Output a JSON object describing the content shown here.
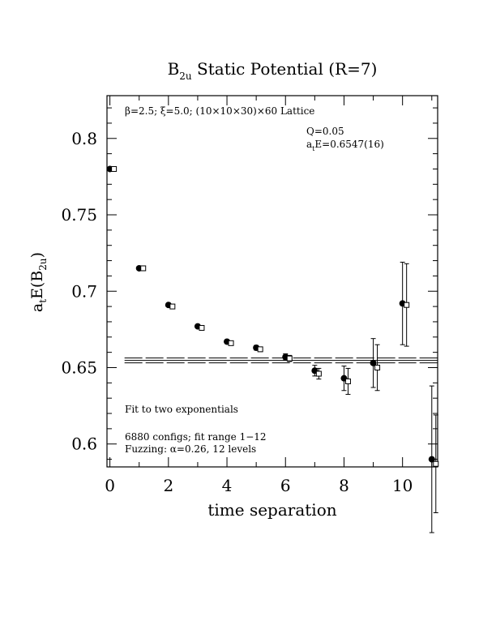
{
  "chart_data": {
    "type": "scatter",
    "title": "B2u Static Potential (R=7)",
    "title_parts": {
      "main": "B",
      "sub": "2u",
      "rest": " Static Potential (R=7)"
    },
    "xlabel": "time separation",
    "ylabel": "a_tE(B_2u)",
    "ylabel_parts": {
      "a": "a",
      "t": "t",
      "e": "E(B",
      "sub": "2u",
      "close": ")"
    },
    "xlim": [
      -0.1,
      11.2
    ],
    "ylim": [
      0.585,
      0.828
    ],
    "x_ticks": [
      0,
      2,
      4,
      6,
      8,
      10
    ],
    "x_tick_labels": [
      "0",
      "2",
      "4",
      "6",
      "8",
      "10"
    ],
    "y_ticks": [
      0.6,
      0.65,
      0.7,
      0.75,
      0.8
    ],
    "y_tick_labels": [
      "0.6",
      "0.65",
      "0.7",
      "0.75",
      "0.8"
    ],
    "annotations": {
      "lattice": "β=2.5; ξ=5.0; (10×10×30)×60 Lattice",
      "q": "Q=0.05",
      "energy_prefix": "a",
      "energy_sub": "t",
      "energy_rest": "E=0.6547(16)",
      "fit_desc": "Fit to two exponentials",
      "configs": "6880 configs; fit range 1−12",
      "fuzzing": "Fuzzing: α=0.26, 12 levels"
    },
    "fit": {
      "value": 0.6547,
      "error": 0.0016,
      "x_start": 0.5,
      "x_end": 11.2
    },
    "series": [
      {
        "marker": "filled-circle",
        "points": [
          {
            "x": 0,
            "y": 0.78,
            "err": 0.0007
          },
          {
            "x": 1,
            "y": 0.715,
            "err": 0.0008
          },
          {
            "x": 2,
            "y": 0.691,
            "err": 0.0009
          },
          {
            "x": 3,
            "y": 0.677,
            "err": 0.001
          },
          {
            "x": 4,
            "y": 0.667,
            "err": 0.0012
          },
          {
            "x": 5,
            "y": 0.663,
            "err": 0.0015
          },
          {
            "x": 6,
            "y": 0.657,
            "err": 0.002
          },
          {
            "x": 7,
            "y": 0.648,
            "err": 0.0035
          },
          {
            "x": 8,
            "y": 0.643,
            "err": 0.008
          },
          {
            "x": 9,
            "y": 0.653,
            "err": 0.016
          },
          {
            "x": 10,
            "y": 0.692,
            "err": 0.027
          },
          {
            "x": 11,
            "y": 0.59,
            "err": 0.048
          }
        ]
      },
      {
        "marker": "open-square",
        "points": [
          {
            "x": 0,
            "y": 0.78,
            "err": 0.0007
          },
          {
            "x": 1,
            "y": 0.715,
            "err": 0.0008
          },
          {
            "x": 2,
            "y": 0.69,
            "err": 0.0009
          },
          {
            "x": 3,
            "y": 0.676,
            "err": 0.001
          },
          {
            "x": 4,
            "y": 0.666,
            "err": 0.0012
          },
          {
            "x": 5,
            "y": 0.662,
            "err": 0.0015
          },
          {
            "x": 6,
            "y": 0.656,
            "err": 0.002
          },
          {
            "x": 7,
            "y": 0.646,
            "err": 0.0035
          },
          {
            "x": 8,
            "y": 0.641,
            "err": 0.0085
          },
          {
            "x": 9,
            "y": 0.65,
            "err": 0.015
          },
          {
            "x": 10,
            "y": 0.691,
            "err": 0.027
          },
          {
            "x": 11,
            "y": 0.587,
            "err": 0.032
          }
        ]
      }
    ]
  }
}
